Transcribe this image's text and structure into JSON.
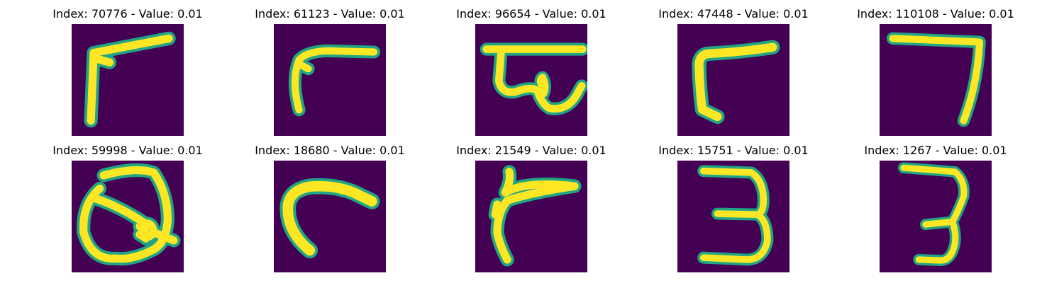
{
  "colors": {
    "background": "#440154",
    "stroke_core": "#fde725",
    "stroke_edge": "#21a585"
  },
  "panels": [
    {
      "title": "Index: 70776 - Value: 0.01",
      "depicts": "slanted stroke resembling 7 or 1"
    },
    {
      "title": "Index: 61123 - Value: 0.01",
      "depicts": "slanted stroke resembling 7"
    },
    {
      "title": "Index: 96654 - Value: 0.01",
      "depicts": "top bar with looped squiggle"
    },
    {
      "title": "Index: 47448 - Value: 0.01",
      "depicts": "hooked stroke resembling 7"
    },
    {
      "title": "Index: 110108 - Value: 0.01",
      "depicts": "digit 7"
    },
    {
      "title": "Index: 59998 - Value: 0.01",
      "depicts": "looped shape resembling Q or 2"
    },
    {
      "title": "Index: 18680 - Value: 0.01",
      "depicts": "curved stroke"
    },
    {
      "title": "Index: 21549 - Value: 0.01",
      "depicts": "slanted stroke resembling 7"
    },
    {
      "title": "Index: 15751 - Value: 0.01",
      "depicts": "digit 3"
    },
    {
      "title": "Index: 1267 - Value: 0.01",
      "depicts": "digit 3"
    }
  ]
}
